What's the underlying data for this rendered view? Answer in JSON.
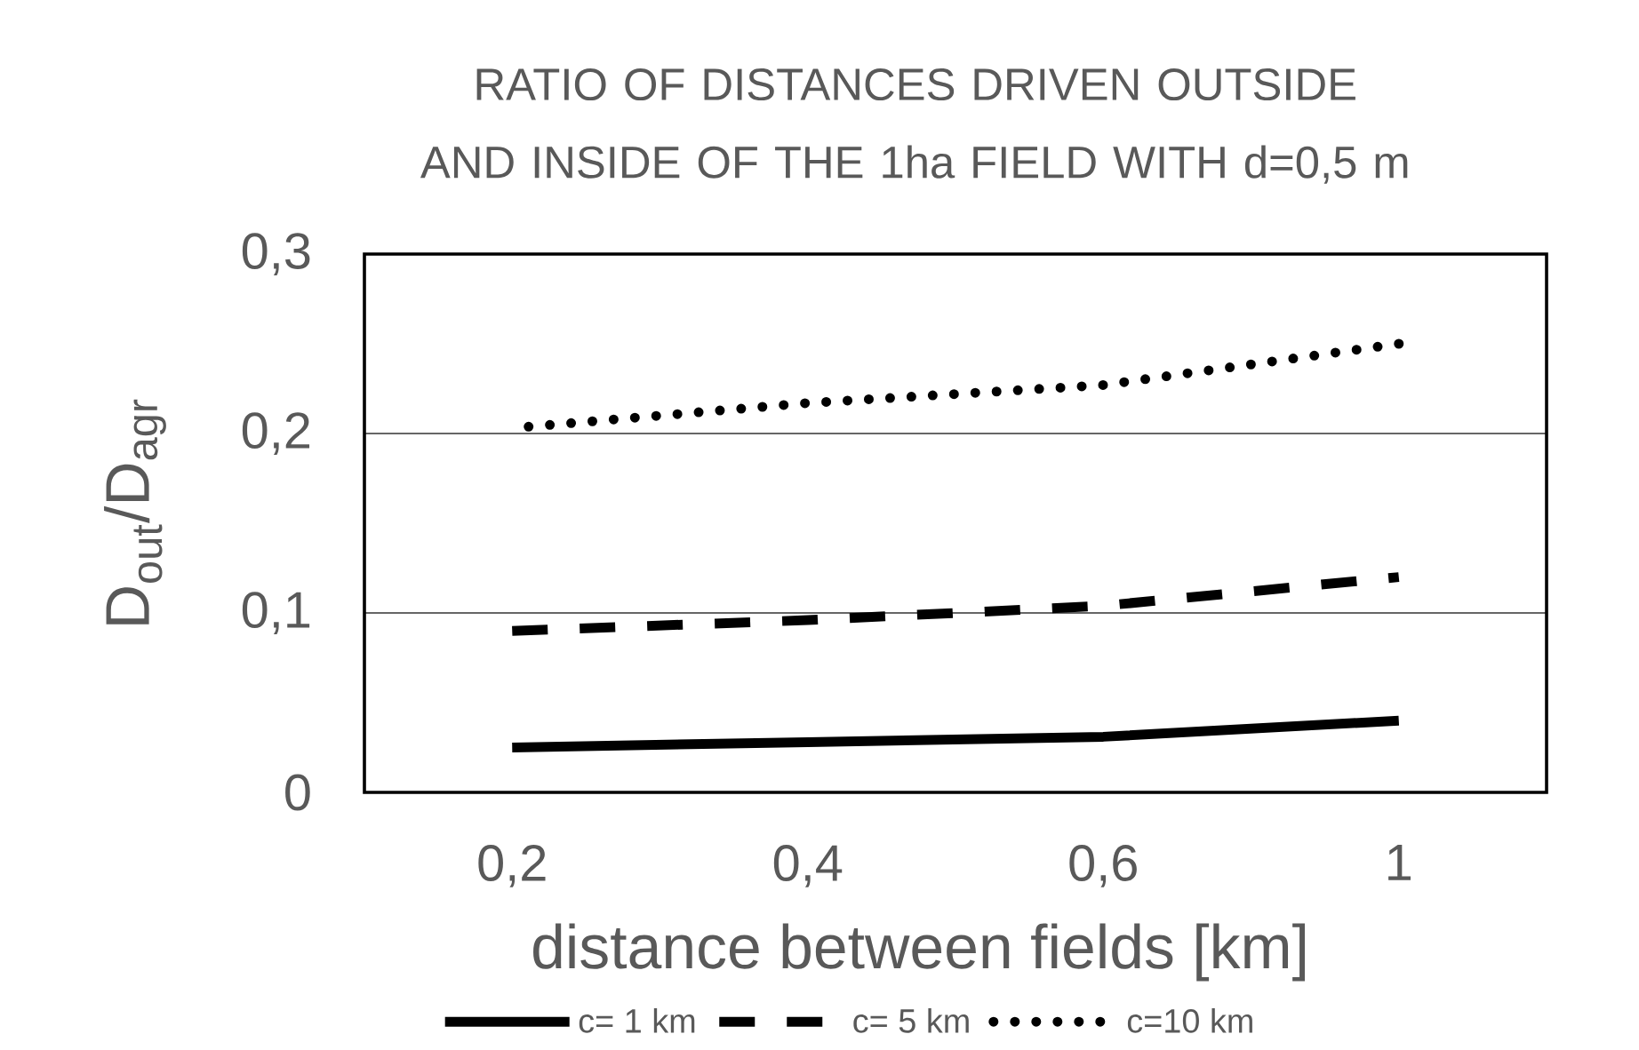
{
  "chart_data": {
    "type": "line",
    "title": "RATIO OF DISTANCES DRIVEN OUTSIDE AND INSIDE OF THE 1ha FIELD WITH d=0,5 m",
    "xlabel": "distance between fields [km]",
    "ylabel": "D$_{out}$/D$_{agr}$",
    "categories": [
      "0,2",
      "0,4",
      "0,6",
      "1"
    ],
    "series": [
      {
        "name": "c= 1 km",
        "color": "#000000",
        "line_style": "solid",
        "values": [
          0.025,
          0.028,
          0.031,
          0.04
        ]
      },
      {
        "name": "c= 5 km",
        "color": "#000000",
        "line_style": "dashed",
        "values": [
          0.09,
          0.096,
          0.104,
          0.12
        ]
      },
      {
        "name": "c=10 km",
        "color": "#000000",
        "line_style": "dotted",
        "values": [
          0.203,
          0.217,
          0.227,
          0.25
        ]
      }
    ],
    "ylim": [
      0,
      0.3
    ],
    "yticks": [
      0,
      {
        "value": 0.1,
        "label": "0,1"
      },
      {
        "value": 0.2,
        "label": "0,2"
      },
      {
        "value": 0.3,
        "label": "0,3"
      }
    ],
    "grid": "y",
    "legend": "bottom"
  }
}
